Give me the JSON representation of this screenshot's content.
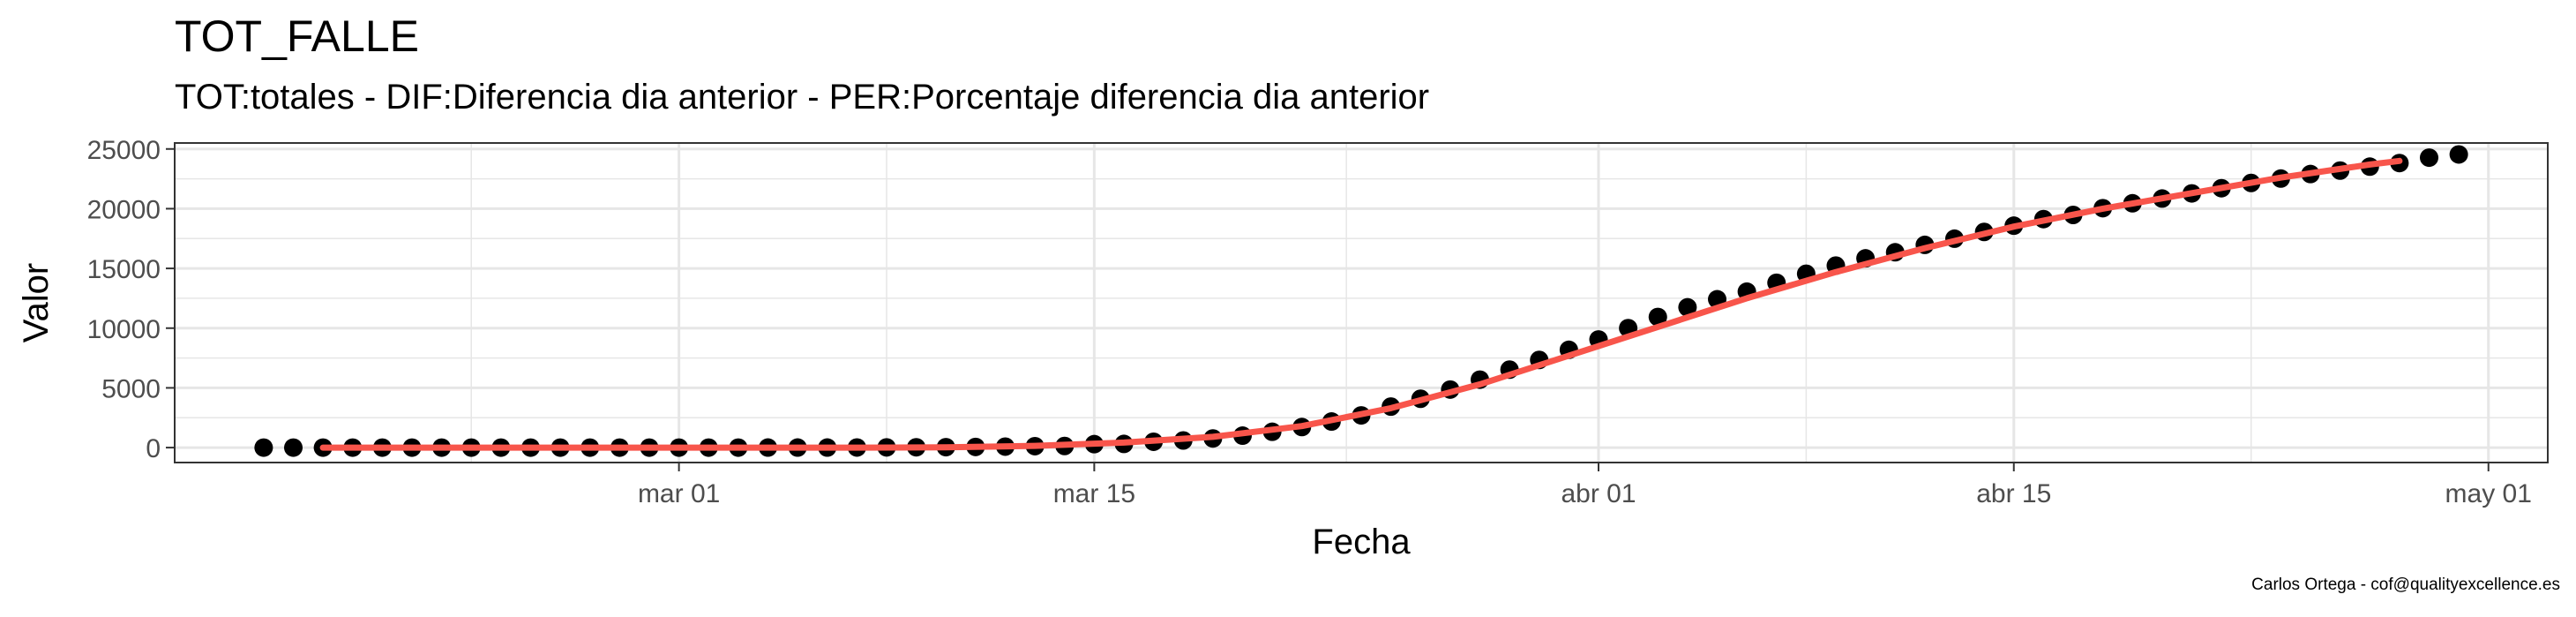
{
  "title": "TOT_FALLE",
  "subtitle": "TOT:totales - DIF:Diferencia dia anterior - PER:Porcentaje diferencia dia anterior",
  "caption": "Carlos Ortega - cof@qualityexcellence.es",
  "chart_data": {
    "type": "scatter",
    "xlabel": "Fecha",
    "ylabel": "Valor",
    "xlim": [
      "2020-02-13",
      "2020-05-03"
    ],
    "ylim": [
      -1250,
      25500
    ],
    "grid": true,
    "x_ticks": [
      {
        "date": "2020-03-01",
        "label": "mar 01"
      },
      {
        "date": "2020-03-15",
        "label": "mar 15"
      },
      {
        "date": "2020-04-01",
        "label": "abr 01"
      },
      {
        "date": "2020-04-15",
        "label": "abr 15"
      },
      {
        "date": "2020-05-01",
        "label": "may 01"
      }
    ],
    "y_ticks": [
      0,
      5000,
      10000,
      15000,
      20000,
      25000
    ],
    "colors": {
      "points": "#000000",
      "trend": "#f8554b",
      "grid": "#e6e6e6",
      "panel_border": "#333333"
    },
    "series": [
      {
        "kind": "points",
        "x": [
          "2020-02-16",
          "2020-02-17",
          "2020-02-18",
          "2020-02-19",
          "2020-02-20",
          "2020-02-21",
          "2020-02-22",
          "2020-02-23",
          "2020-02-24",
          "2020-02-25",
          "2020-02-26",
          "2020-02-27",
          "2020-02-28",
          "2020-02-29",
          "2020-03-01",
          "2020-03-02",
          "2020-03-03",
          "2020-03-04",
          "2020-03-05",
          "2020-03-06",
          "2020-03-07",
          "2020-03-08",
          "2020-03-09",
          "2020-03-10",
          "2020-03-11",
          "2020-03-12",
          "2020-03-13",
          "2020-03-14",
          "2020-03-15",
          "2020-03-16",
          "2020-03-17",
          "2020-03-18",
          "2020-03-19",
          "2020-03-20",
          "2020-03-21",
          "2020-03-22",
          "2020-03-23",
          "2020-03-24",
          "2020-03-25",
          "2020-03-26",
          "2020-03-27",
          "2020-03-28",
          "2020-03-29",
          "2020-03-30",
          "2020-03-31",
          "2020-04-01",
          "2020-04-02",
          "2020-04-03",
          "2020-04-04",
          "2020-04-05",
          "2020-04-06",
          "2020-04-07",
          "2020-04-08",
          "2020-04-09",
          "2020-04-10",
          "2020-04-11",
          "2020-04-12",
          "2020-04-13",
          "2020-04-14",
          "2020-04-15",
          "2020-04-16",
          "2020-04-17",
          "2020-04-18",
          "2020-04-19",
          "2020-04-20",
          "2020-04-21",
          "2020-04-22",
          "2020-04-23",
          "2020-04-24",
          "2020-04-25",
          "2020-04-26",
          "2020-04-27",
          "2020-04-28",
          "2020-04-29",
          "2020-04-30"
        ],
        "y": [
          0,
          0,
          0,
          0,
          0,
          0,
          0,
          0,
          0,
          0,
          0,
          0,
          0,
          0,
          0,
          0,
          1,
          2,
          3,
          5,
          10,
          17,
          28,
          35,
          54,
          84,
          120,
          136,
          288,
          309,
          491,
          598,
          767,
          1002,
          1326,
          1720,
          2182,
          2696,
          3434,
          4089,
          4858,
          5690,
          6528,
          7340,
          8189,
          9053,
          10003,
          10935,
          11744,
          12418,
          13055,
          13798,
          14555,
          15238,
          15843,
          16353,
          16972,
          17489,
          18056,
          18579,
          19130,
          19478,
          20043,
          20453,
          20852,
          21282,
          21717,
          22157,
          22524,
          22902,
          23190,
          23521,
          23822,
          24275,
          24543
        ]
      },
      {
        "kind": "line",
        "x": [
          "2020-02-18",
          "2020-02-21",
          "2020-02-24",
          "2020-02-27",
          "2020-03-01",
          "2020-03-04",
          "2020-03-07",
          "2020-03-10",
          "2020-03-13",
          "2020-03-16",
          "2020-03-19",
          "2020-03-22",
          "2020-03-25",
          "2020-03-28",
          "2020-03-31",
          "2020-04-03",
          "2020-04-06",
          "2020-04-09",
          "2020-04-12",
          "2020-04-15",
          "2020-04-18",
          "2020-04-21",
          "2020-04-24",
          "2020-04-27",
          "2020-04-28"
        ],
        "y": [
          0,
          0,
          0,
          0,
          0,
          0,
          0,
          20,
          150,
          420,
          900,
          1800,
          3300,
          5300,
          7700,
          10100,
          12500,
          14700,
          16700,
          18500,
          20000,
          21300,
          22600,
          23700,
          24000
        ]
      }
    ]
  }
}
